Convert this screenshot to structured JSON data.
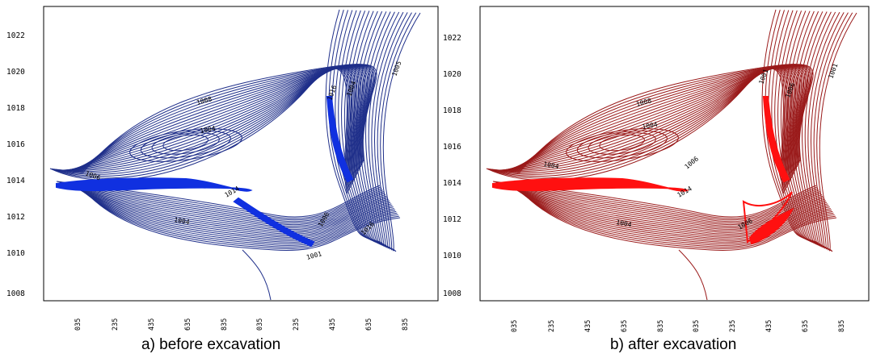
{
  "panels": [
    {
      "caption": "a) before excavation",
      "line_color": "#1f2f8a",
      "fill_color": "#1030e0",
      "y_ticks": [
        "1022",
        "1020",
        "1018",
        "1016",
        "1014",
        "1012",
        "1010",
        "1008"
      ],
      "x_ticks": [
        "035",
        "235",
        "435",
        "635",
        "835",
        "035",
        "235",
        "435",
        "635",
        "835"
      ],
      "contour_labels": [
        "1008",
        "1004",
        "1006",
        "1014",
        "1004",
        "1001",
        "1016",
        "1004",
        "1005",
        "1006",
        "1016"
      ]
    },
    {
      "caption": "b) after excavation",
      "line_color": "#9a1a1a",
      "fill_color": "#ff1010",
      "y_ticks": [
        "1022",
        "1020",
        "1018",
        "1016",
        "1014",
        "1012",
        "1010",
        "1008"
      ],
      "x_ticks": [
        "035",
        "235",
        "435",
        "635",
        "835",
        "035",
        "235",
        "435",
        "635",
        "835"
      ],
      "contour_labels": [
        "1008",
        "1004",
        "1004",
        "1014",
        "1004",
        "1001",
        "1006",
        "1001",
        "1006",
        "1006"
      ]
    }
  ]
}
